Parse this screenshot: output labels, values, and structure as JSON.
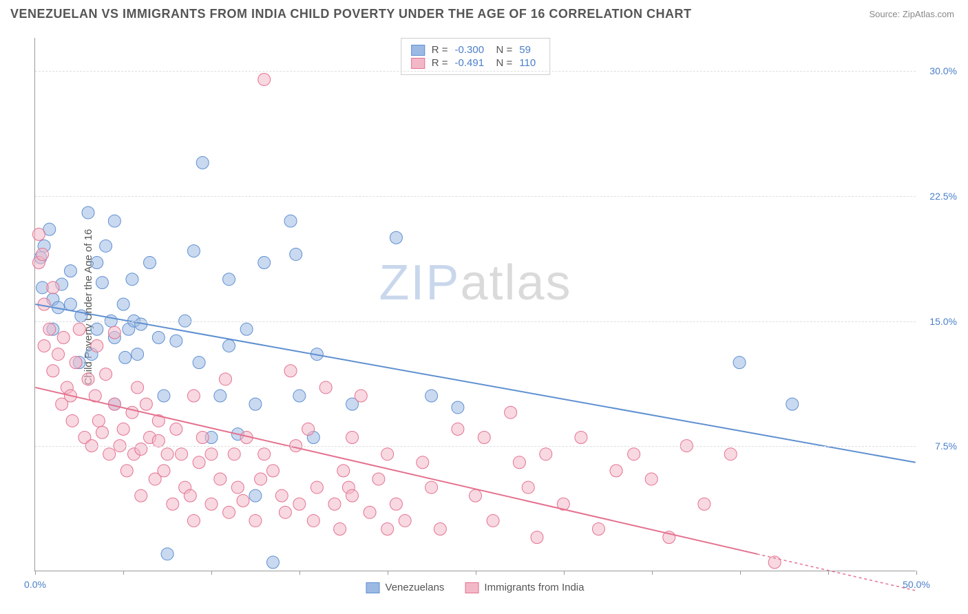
{
  "title": "VENEZUELAN VS IMMIGRANTS FROM INDIA CHILD POVERTY UNDER THE AGE OF 16 CORRELATION CHART",
  "source": "Source: ZipAtlas.com",
  "y_axis_label": "Child Poverty Under the Age of 16",
  "watermark": {
    "part1": "ZIP",
    "part2": "atlas"
  },
  "chart": {
    "type": "scatter",
    "xlim": [
      0,
      50
    ],
    "ylim": [
      0,
      32
    ],
    "x_ticks": [
      0,
      5,
      10,
      15,
      20,
      25,
      30,
      35,
      40,
      45,
      50
    ],
    "x_tick_labels_shown": {
      "0": "0.0%",
      "50": "50.0%"
    },
    "y_ticks": [
      7.5,
      15.0,
      22.5,
      30.0
    ],
    "y_tick_labels": [
      "7.5%",
      "15.0%",
      "22.5%",
      "30.0%"
    ],
    "grid_color": "#dddddd",
    "axis_color": "#999999",
    "background": "#ffffff",
    "marker_radius": 9,
    "marker_opacity": 0.55,
    "series": [
      {
        "name": "Venezuelans",
        "color_fill": "#9cb9e4",
        "color_stroke": "#5e8fd0",
        "R": "-0.300",
        "N": "59",
        "trend": {
          "x1": 0,
          "y1": 16.0,
          "x2": 50,
          "y2": 6.5,
          "dash_after_x": 50
        },
        "points": [
          [
            0.3,
            18.8
          ],
          [
            0.4,
            17.0
          ],
          [
            0.5,
            19.5
          ],
          [
            0.8,
            20.5
          ],
          [
            1.0,
            16.3
          ],
          [
            1.0,
            14.5
          ],
          [
            1.3,
            15.8
          ],
          [
            1.5,
            17.2
          ],
          [
            2.0,
            16.0
          ],
          [
            2.0,
            18.0
          ],
          [
            2.5,
            12.5
          ],
          [
            2.6,
            15.3
          ],
          [
            3.0,
            21.5
          ],
          [
            3.2,
            13.0
          ],
          [
            3.5,
            18.5
          ],
          [
            3.5,
            14.5
          ],
          [
            3.8,
            17.3
          ],
          [
            4.0,
            19.5
          ],
          [
            4.3,
            15.0
          ],
          [
            4.5,
            14.0
          ],
          [
            4.5,
            21.0
          ],
          [
            4.5,
            10.0
          ],
          [
            5.0,
            16.0
          ],
          [
            5.1,
            12.8
          ],
          [
            5.3,
            14.5
          ],
          [
            5.5,
            17.5
          ],
          [
            5.6,
            15.0
          ],
          [
            5.8,
            13.0
          ],
          [
            6.0,
            14.8
          ],
          [
            6.5,
            18.5
          ],
          [
            7.0,
            14.0
          ],
          [
            7.3,
            10.5
          ],
          [
            7.5,
            1.0
          ],
          [
            8.0,
            13.8
          ],
          [
            8.5,
            15.0
          ],
          [
            9.0,
            19.2
          ],
          [
            9.3,
            12.5
          ],
          [
            9.5,
            24.5
          ],
          [
            10.0,
            8.0
          ],
          [
            10.5,
            10.5
          ],
          [
            11.0,
            17.5
          ],
          [
            11.0,
            13.5
          ],
          [
            11.5,
            8.2
          ],
          [
            12.0,
            14.5
          ],
          [
            12.5,
            4.5
          ],
          [
            12.5,
            10.0
          ],
          [
            13.0,
            18.5
          ],
          [
            13.5,
            0.5
          ],
          [
            14.5,
            21.0
          ],
          [
            14.8,
            19.0
          ],
          [
            15.0,
            10.5
          ],
          [
            15.8,
            8.0
          ],
          [
            16.0,
            13.0
          ],
          [
            18.0,
            10.0
          ],
          [
            20.5,
            20.0
          ],
          [
            22.5,
            10.5
          ],
          [
            24.0,
            9.8
          ],
          [
            40.0,
            12.5
          ],
          [
            43.0,
            10.0
          ]
        ]
      },
      {
        "name": "Immigrants from India",
        "color_fill": "#f3b8c8",
        "color_stroke": "#e4718f",
        "R": "-0.491",
        "N": "110",
        "trend": {
          "x1": 0,
          "y1": 11.0,
          "x2": 41,
          "y2": 1.0,
          "dash_after_x": 41
        },
        "points": [
          [
            0.2,
            20.2
          ],
          [
            0.2,
            18.5
          ],
          [
            0.4,
            19.0
          ],
          [
            0.5,
            16.0
          ],
          [
            0.5,
            13.5
          ],
          [
            0.8,
            14.5
          ],
          [
            1.0,
            17.0
          ],
          [
            1.0,
            12.0
          ],
          [
            1.3,
            13.0
          ],
          [
            1.5,
            10.0
          ],
          [
            1.6,
            14.0
          ],
          [
            1.8,
            11.0
          ],
          [
            2.0,
            10.5
          ],
          [
            2.1,
            9.0
          ],
          [
            2.3,
            12.5
          ],
          [
            2.5,
            14.5
          ],
          [
            2.8,
            8.0
          ],
          [
            3.0,
            11.5
          ],
          [
            3.2,
            7.5
          ],
          [
            3.4,
            10.5
          ],
          [
            3.5,
            13.5
          ],
          [
            3.6,
            9.0
          ],
          [
            3.8,
            8.3
          ],
          [
            4.0,
            11.8
          ],
          [
            4.2,
            7.0
          ],
          [
            4.5,
            10.0
          ],
          [
            4.5,
            14.3
          ],
          [
            4.8,
            7.5
          ],
          [
            5.0,
            8.5
          ],
          [
            5.2,
            6.0
          ],
          [
            5.5,
            9.5
          ],
          [
            5.6,
            7.0
          ],
          [
            5.8,
            11.0
          ],
          [
            6.0,
            7.3
          ],
          [
            6.0,
            4.5
          ],
          [
            6.3,
            10.0
          ],
          [
            6.5,
            8.0
          ],
          [
            6.8,
            5.5
          ],
          [
            7.0,
            7.8
          ],
          [
            7.0,
            9.0
          ],
          [
            7.3,
            6.0
          ],
          [
            7.5,
            7.0
          ],
          [
            7.8,
            4.0
          ],
          [
            8.0,
            8.5
          ],
          [
            8.3,
            7.0
          ],
          [
            8.5,
            5.0
          ],
          [
            8.8,
            4.5
          ],
          [
            9.0,
            3.0
          ],
          [
            9.0,
            10.5
          ],
          [
            9.3,
            6.5
          ],
          [
            9.5,
            8.0
          ],
          [
            10.0,
            4.0
          ],
          [
            10.0,
            7.0
          ],
          [
            10.5,
            5.5
          ],
          [
            10.8,
            11.5
          ],
          [
            11.0,
            3.5
          ],
          [
            11.3,
            7.0
          ],
          [
            11.5,
            5.0
          ],
          [
            11.8,
            4.2
          ],
          [
            12.0,
            8.0
          ],
          [
            12.5,
            3.0
          ],
          [
            12.8,
            5.5
          ],
          [
            13.0,
            7.0
          ],
          [
            13.0,
            29.5
          ],
          [
            13.5,
            6.0
          ],
          [
            14.0,
            4.5
          ],
          [
            14.2,
            3.5
          ],
          [
            14.5,
            12.0
          ],
          [
            14.8,
            7.5
          ],
          [
            15.0,
            4.0
          ],
          [
            15.5,
            8.5
          ],
          [
            15.8,
            3.0
          ],
          [
            16.0,
            5.0
          ],
          [
            16.5,
            11.0
          ],
          [
            17.0,
            4.0
          ],
          [
            17.3,
            2.5
          ],
          [
            17.5,
            6.0
          ],
          [
            17.8,
            5.0
          ],
          [
            18.0,
            4.5
          ],
          [
            18.0,
            8.0
          ],
          [
            18.5,
            10.5
          ],
          [
            19.0,
            3.5
          ],
          [
            19.5,
            5.5
          ],
          [
            20.0,
            2.5
          ],
          [
            20.0,
            7.0
          ],
          [
            20.5,
            4.0
          ],
          [
            21.0,
            3.0
          ],
          [
            22.0,
            6.5
          ],
          [
            22.5,
            5.0
          ],
          [
            23.0,
            2.5
          ],
          [
            24.0,
            8.5
          ],
          [
            25.0,
            4.5
          ],
          [
            25.5,
            8.0
          ],
          [
            26.0,
            3.0
          ],
          [
            27.0,
            9.5
          ],
          [
            27.5,
            6.5
          ],
          [
            28.0,
            5.0
          ],
          [
            28.5,
            2.0
          ],
          [
            29.0,
            7.0
          ],
          [
            30.0,
            4.0
          ],
          [
            31.0,
            8.0
          ],
          [
            32.0,
            2.5
          ],
          [
            33.0,
            6.0
          ],
          [
            34.0,
            7.0
          ],
          [
            35.0,
            5.5
          ],
          [
            36.0,
            2.0
          ],
          [
            37.0,
            7.5
          ],
          [
            38.0,
            4.0
          ],
          [
            39.5,
            7.0
          ],
          [
            42.0,
            0.5
          ]
        ]
      }
    ]
  },
  "stats_labels": {
    "R": "R =",
    "N": "N ="
  },
  "bottom_legend": [
    {
      "label": "Venezuelans",
      "fill": "#9cb9e4",
      "stroke": "#5e8fd0"
    },
    {
      "label": "Immigrants from India",
      "fill": "#f3b8c8",
      "stroke": "#e4718f"
    }
  ]
}
